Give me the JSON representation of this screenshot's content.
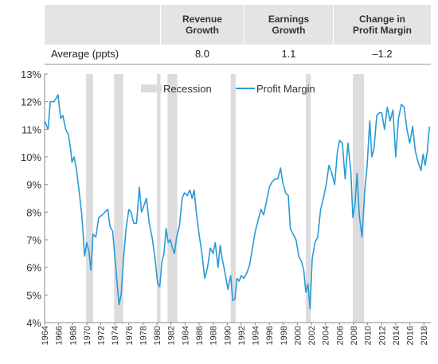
{
  "table": {
    "columns": [
      "Revenue\nGrowth",
      "Earnings\nGrowth",
      "Change in\nProfit Margin"
    ],
    "row_label": "Average (ppts)",
    "values": [
      "8.0",
      "1.1",
      "–1.2"
    ]
  },
  "colors": {
    "line": "#2a9ad6",
    "recession": "#dcdcdc",
    "header_bg": "#e4e4e4",
    "axis": "#888888"
  },
  "chart_data": {
    "type": "line",
    "title": "",
    "xlabel": "",
    "ylabel": "",
    "xlim": [
      1964,
      2019
    ],
    "ylim": [
      4,
      13
    ],
    "yticks": [
      "4%",
      "5%",
      "6%",
      "7%",
      "8%",
      "9%",
      "10%",
      "11%",
      "12%",
      "13%"
    ],
    "xticks": [
      "1964",
      "1966",
      "1968",
      "1970",
      "1972",
      "1974",
      "1976",
      "1978",
      "1980",
      "1982",
      "1984",
      "1986",
      "1988",
      "1990",
      "1992",
      "1994",
      "1996",
      "1998",
      "2000",
      "2002",
      "2004",
      "2006",
      "2008",
      "2010",
      "2012",
      "2014",
      "2016",
      "2018"
    ],
    "legend": [
      {
        "label": "Recession",
        "kind": "band"
      },
      {
        "label": "Profit Margin",
        "kind": "line"
      }
    ],
    "legend_position": "top-center",
    "recessions": [
      [
        1969.9,
        1970.9
      ],
      [
        1973.9,
        1975.2
      ],
      [
        1980.0,
        1980.5
      ],
      [
        1981.5,
        1982.9
      ],
      [
        1990.5,
        1991.2
      ],
      [
        2001.2,
        2001.9
      ],
      [
        2007.9,
        2009.5
      ]
    ],
    "series": [
      {
        "name": "Profit Margin",
        "points": [
          [
            1964.0,
            11.3
          ],
          [
            1964.5,
            11.0
          ],
          [
            1964.8,
            12.0
          ],
          [
            1965.3,
            12.0
          ],
          [
            1965.6,
            12.1
          ],
          [
            1965.9,
            12.25
          ],
          [
            1966.3,
            11.4
          ],
          [
            1966.6,
            11.5
          ],
          [
            1967.0,
            11.0
          ],
          [
            1967.4,
            10.8
          ],
          [
            1967.7,
            10.3
          ],
          [
            1967.9,
            9.8
          ],
          [
            1968.2,
            10.0
          ],
          [
            1968.5,
            9.6
          ],
          [
            1968.9,
            8.8
          ],
          [
            1969.3,
            7.9
          ],
          [
            1969.7,
            6.4
          ],
          [
            1970.0,
            6.9
          ],
          [
            1970.3,
            6.6
          ],
          [
            1970.6,
            5.9
          ],
          [
            1970.9,
            7.2
          ],
          [
            1971.3,
            7.1
          ],
          [
            1971.7,
            7.8
          ],
          [
            1972.2,
            7.9
          ],
          [
            1972.6,
            8.0
          ],
          [
            1973.0,
            8.1
          ],
          [
            1973.3,
            7.5
          ],
          [
            1973.7,
            7.3
          ],
          [
            1974.0,
            6.4
          ],
          [
            1974.3,
            5.5
          ],
          [
            1974.6,
            4.65
          ],
          [
            1974.9,
            5.0
          ],
          [
            1975.2,
            6.2
          ],
          [
            1975.6,
            7.4
          ],
          [
            1976.0,
            8.1
          ],
          [
            1976.3,
            8.0
          ],
          [
            1976.7,
            7.6
          ],
          [
            1977.1,
            7.6
          ],
          [
            1977.5,
            8.9
          ],
          [
            1977.8,
            8.0
          ],
          [
            1978.1,
            8.2
          ],
          [
            1978.5,
            8.5
          ],
          [
            1978.9,
            7.6
          ],
          [
            1979.3,
            7.1
          ],
          [
            1979.7,
            6.4
          ],
          [
            1980.1,
            5.4
          ],
          [
            1980.4,
            5.3
          ],
          [
            1980.7,
            6.2
          ],
          [
            1981.0,
            6.5
          ],
          [
            1981.3,
            7.4
          ],
          [
            1981.6,
            6.9
          ],
          [
            1981.9,
            7.0
          ],
          [
            1982.2,
            6.7
          ],
          [
            1982.5,
            6.5
          ],
          [
            1982.8,
            7.1
          ],
          [
            1983.2,
            7.5
          ],
          [
            1983.6,
            8.5
          ],
          [
            1983.9,
            8.7
          ],
          [
            1984.3,
            8.6
          ],
          [
            1984.7,
            8.8
          ],
          [
            1985.0,
            8.5
          ],
          [
            1985.3,
            8.8
          ],
          [
            1985.6,
            8.0
          ],
          [
            1986.0,
            7.2
          ],
          [
            1986.4,
            6.5
          ],
          [
            1986.8,
            5.6
          ],
          [
            1987.2,
            6.0
          ],
          [
            1987.6,
            6.7
          ],
          [
            1988.0,
            6.5
          ],
          [
            1988.3,
            6.9
          ],
          [
            1988.7,
            6.0
          ],
          [
            1989.0,
            6.8
          ],
          [
            1989.3,
            6.3
          ],
          [
            1989.7,
            5.8
          ],
          [
            1990.1,
            5.2
          ],
          [
            1990.5,
            5.7
          ],
          [
            1990.8,
            4.8
          ],
          [
            1991.1,
            4.85
          ],
          [
            1991.4,
            5.6
          ],
          [
            1991.7,
            5.5
          ],
          [
            1992.0,
            5.7
          ],
          [
            1992.4,
            5.6
          ],
          [
            1992.8,
            5.8
          ],
          [
            1993.2,
            6.1
          ],
          [
            1993.6,
            6.7
          ],
          [
            1994.0,
            7.3
          ],
          [
            1994.4,
            7.7
          ],
          [
            1994.8,
            8.1
          ],
          [
            1995.2,
            7.9
          ],
          [
            1995.6,
            8.4
          ],
          [
            1996.0,
            8.9
          ],
          [
            1996.4,
            9.1
          ],
          [
            1996.8,
            9.2
          ],
          [
            1997.2,
            9.2
          ],
          [
            1997.6,
            9.6
          ],
          [
            1997.9,
            9.1
          ],
          [
            1998.3,
            8.7
          ],
          [
            1998.7,
            8.6
          ],
          [
            1999.0,
            7.4
          ],
          [
            1999.4,
            7.2
          ],
          [
            1999.8,
            7.0
          ],
          [
            2000.2,
            6.4
          ],
          [
            2000.6,
            6.2
          ],
          [
            2000.9,
            5.9
          ],
          [
            2001.2,
            5.1
          ],
          [
            2001.5,
            5.4
          ],
          [
            2001.8,
            4.5
          ],
          [
            2002.1,
            6.3
          ],
          [
            2002.5,
            6.9
          ],
          [
            2002.9,
            7.1
          ],
          [
            2003.3,
            8.1
          ],
          [
            2003.7,
            8.5
          ],
          [
            2004.1,
            9.0
          ],
          [
            2004.5,
            9.7
          ],
          [
            2004.9,
            9.4
          ],
          [
            2005.3,
            9.0
          ],
          [
            2005.7,
            10.2
          ],
          [
            2006.0,
            10.6
          ],
          [
            2006.4,
            10.5
          ],
          [
            2006.8,
            9.2
          ],
          [
            2007.2,
            10.5
          ],
          [
            2007.6,
            9.5
          ],
          [
            2007.9,
            7.8
          ],
          [
            2008.2,
            8.3
          ],
          [
            2008.5,
            9.4
          ],
          [
            2008.8,
            7.9
          ],
          [
            2009.2,
            7.1
          ],
          [
            2009.6,
            8.8
          ],
          [
            2009.9,
            9.6
          ],
          [
            2010.3,
            11.3
          ],
          [
            2010.6,
            10.0
          ],
          [
            2010.9,
            10.3
          ],
          [
            2011.3,
            11.5
          ],
          [
            2011.7,
            11.6
          ],
          [
            2012.0,
            11.6
          ],
          [
            2012.4,
            11.0
          ],
          [
            2012.8,
            11.8
          ],
          [
            2013.2,
            11.3
          ],
          [
            2013.6,
            11.7
          ],
          [
            2014.0,
            10.0
          ],
          [
            2014.4,
            11.4
          ],
          [
            2014.8,
            11.9
          ],
          [
            2015.2,
            11.8
          ],
          [
            2015.6,
            11.0
          ],
          [
            2016.0,
            10.5
          ],
          [
            2016.4,
            11.1
          ],
          [
            2016.8,
            10.2
          ],
          [
            2017.2,
            9.8
          ],
          [
            2017.6,
            9.5
          ],
          [
            2017.9,
            10.1
          ],
          [
            2018.2,
            9.7
          ],
          [
            2018.5,
            10.2
          ],
          [
            2018.8,
            11.1
          ]
        ]
      }
    ]
  }
}
